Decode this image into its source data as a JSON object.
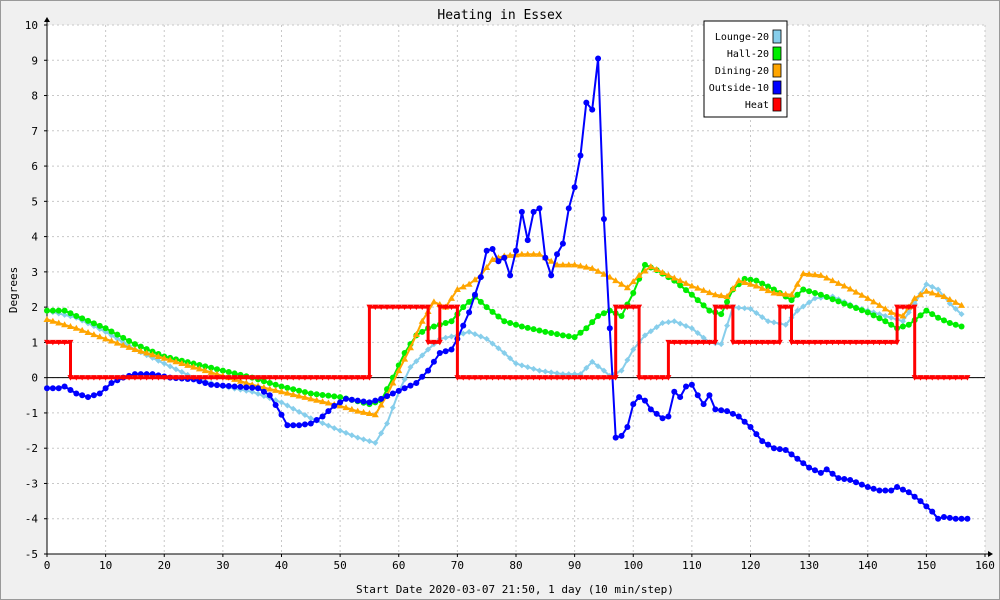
{
  "chart_data": {
    "type": "line",
    "title": "Heating in Essex",
    "xlabel": "Start Date 2020-03-07 21:50, 1 day (10 min/step)",
    "ylabel": "Degrees",
    "xlim": [
      0,
      160
    ],
    "ylim": [
      -5,
      10
    ],
    "xticks": [
      0,
      10,
      20,
      30,
      40,
      50,
      60,
      70,
      80,
      90,
      100,
      110,
      120,
      130,
      140,
      150,
      160
    ],
    "yticks": [
      -5,
      -4,
      -3,
      -2,
      -1,
      0,
      1,
      2,
      3,
      4,
      5,
      6,
      7,
      8,
      9,
      10
    ],
    "grid": true,
    "legend_position": "top-right",
    "series": [
      {
        "name": "Lounge-20",
        "color": "#87ceeb",
        "marker": "diamond",
        "points": [
          [
            0,
            1.9
          ],
          [
            5,
            1.7
          ],
          [
            10,
            1.3
          ],
          [
            15,
            0.8
          ],
          [
            20,
            0.4
          ],
          [
            25,
            0.0
          ],
          [
            30,
            -0.25
          ],
          [
            35,
            -0.4
          ],
          [
            40,
            -0.7
          ],
          [
            45,
            -1.15
          ],
          [
            50,
            -1.5
          ],
          [
            53,
            -1.7
          ],
          [
            56,
            -1.85
          ],
          [
            58,
            -1.3
          ],
          [
            60,
            -0.4
          ],
          [
            62,
            0.3
          ],
          [
            65,
            0.8
          ],
          [
            67,
            1.1
          ],
          [
            70,
            1.2
          ],
          [
            72,
            1.3
          ],
          [
            75,
            1.1
          ],
          [
            78,
            0.7
          ],
          [
            80,
            0.4
          ],
          [
            84,
            0.2
          ],
          [
            88,
            0.1
          ],
          [
            91,
            0.1
          ],
          [
            93,
            0.45
          ],
          [
            95,
            0.2
          ],
          [
            96,
            0.05
          ],
          [
            98,
            0.2
          ],
          [
            100,
            0.8
          ],
          [
            102,
            1.2
          ],
          [
            105,
            1.55
          ],
          [
            107,
            1.6
          ],
          [
            110,
            1.4
          ],
          [
            113,
            1.0
          ],
          [
            115,
            0.95
          ],
          [
            117,
            2.0
          ],
          [
            120,
            1.95
          ],
          [
            123,
            1.6
          ],
          [
            126,
            1.5
          ],
          [
            128,
            1.9
          ],
          [
            131,
            2.25
          ],
          [
            134,
            2.3
          ],
          [
            138,
            2.0
          ],
          [
            142,
            1.8
          ],
          [
            146,
            1.6
          ],
          [
            148,
            2.1
          ],
          [
            150,
            2.65
          ],
          [
            152,
            2.5
          ],
          [
            154,
            2.1
          ],
          [
            156,
            1.8
          ]
        ]
      },
      {
        "name": "Hall-20",
        "color": "#00ee00",
        "marker": "circle",
        "points": [
          [
            0,
            1.9
          ],
          [
            3,
            1.9
          ],
          [
            5,
            1.75
          ],
          [
            10,
            1.4
          ],
          [
            15,
            0.95
          ],
          [
            20,
            0.6
          ],
          [
            25,
            0.4
          ],
          [
            30,
            0.2
          ],
          [
            35,
            0.0
          ],
          [
            40,
            -0.25
          ],
          [
            45,
            -0.45
          ],
          [
            50,
            -0.55
          ],
          [
            55,
            -0.75
          ],
          [
            57,
            -0.65
          ],
          [
            59,
            0.0
          ],
          [
            61,
            0.7
          ],
          [
            63,
            1.2
          ],
          [
            65,
            1.4
          ],
          [
            67,
            1.5
          ],
          [
            69,
            1.6
          ],
          [
            71,
            2.0
          ],
          [
            73,
            2.3
          ],
          [
            75,
            2.0
          ],
          [
            78,
            1.6
          ],
          [
            81,
            1.45
          ],
          [
            85,
            1.3
          ],
          [
            88,
            1.2
          ],
          [
            90,
            1.15
          ],
          [
            92,
            1.4
          ],
          [
            94,
            1.75
          ],
          [
            96,
            1.9
          ],
          [
            98,
            1.75
          ],
          [
            100,
            2.4
          ],
          [
            102,
            3.2
          ],
          [
            104,
            3.05
          ],
          [
            107,
            2.75
          ],
          [
            110,
            2.35
          ],
          [
            113,
            1.9
          ],
          [
            115,
            1.8
          ],
          [
            117,
            2.5
          ],
          [
            119,
            2.8
          ],
          [
            121,
            2.75
          ],
          [
            124,
            2.5
          ],
          [
            127,
            2.2
          ],
          [
            129,
            2.5
          ],
          [
            132,
            2.35
          ],
          [
            136,
            2.1
          ],
          [
            140,
            1.85
          ],
          [
            143,
            1.6
          ],
          [
            145,
            1.4
          ],
          [
            147,
            1.5
          ],
          [
            150,
            1.9
          ],
          [
            152,
            1.7
          ],
          [
            154,
            1.55
          ],
          [
            156,
            1.45
          ]
        ]
      },
      {
        "name": "Dining-20",
        "color": "#ffa500",
        "marker": "triangle",
        "points": [
          [
            0,
            1.65
          ],
          [
            5,
            1.4
          ],
          [
            10,
            1.1
          ],
          [
            15,
            0.8
          ],
          [
            20,
            0.55
          ],
          [
            25,
            0.3
          ],
          [
            30,
            0.05
          ],
          [
            35,
            -0.2
          ],
          [
            40,
            -0.4
          ],
          [
            45,
            -0.6
          ],
          [
            50,
            -0.8
          ],
          [
            53,
            -0.95
          ],
          [
            56,
            -1.05
          ],
          [
            58,
            -0.5
          ],
          [
            60,
            0.2
          ],
          [
            62,
            0.85
          ],
          [
            64,
            1.6
          ],
          [
            66,
            2.15
          ],
          [
            68,
            2.0
          ],
          [
            70,
            2.5
          ],
          [
            72,
            2.65
          ],
          [
            74,
            2.9
          ],
          [
            76,
            3.35
          ],
          [
            78,
            3.45
          ],
          [
            81,
            3.5
          ],
          [
            84,
            3.5
          ],
          [
            87,
            3.2
          ],
          [
            90,
            3.2
          ],
          [
            93,
            3.1
          ],
          [
            96,
            2.85
          ],
          [
            99,
            2.55
          ],
          [
            101,
            2.9
          ],
          [
            103,
            3.15
          ],
          [
            106,
            2.9
          ],
          [
            110,
            2.6
          ],
          [
            114,
            2.35
          ],
          [
            116,
            2.3
          ],
          [
            118,
            2.75
          ],
          [
            121,
            2.6
          ],
          [
            124,
            2.4
          ],
          [
            127,
            2.35
          ],
          [
            129,
            2.95
          ],
          [
            132,
            2.9
          ],
          [
            136,
            2.6
          ],
          [
            140,
            2.25
          ],
          [
            144,
            1.85
          ],
          [
            146,
            1.75
          ],
          [
            148,
            2.25
          ],
          [
            150,
            2.45
          ],
          [
            153,
            2.3
          ],
          [
            156,
            2.05
          ]
        ]
      },
      {
        "name": "Outside-10",
        "color": "#0000ff",
        "marker": "circle",
        "points": [
          [
            0,
            -0.3
          ],
          [
            2,
            -0.3
          ],
          [
            3,
            -0.25
          ],
          [
            5,
            -0.45
          ],
          [
            7,
            -0.55
          ],
          [
            9,
            -0.45
          ],
          [
            11,
            -0.15
          ],
          [
            13,
            0.0
          ],
          [
            15,
            0.1
          ],
          [
            18,
            0.1
          ],
          [
            21,
            0.0
          ],
          [
            25,
            -0.05
          ],
          [
            28,
            -0.2
          ],
          [
            32,
            -0.25
          ],
          [
            36,
            -0.3
          ],
          [
            38,
            -0.5
          ],
          [
            40,
            -1.05
          ],
          [
            41,
            -1.35
          ],
          [
            43,
            -1.35
          ],
          [
            45,
            -1.3
          ],
          [
            47,
            -1.1
          ],
          [
            49,
            -0.8
          ],
          [
            51,
            -0.6
          ],
          [
            53,
            -0.65
          ],
          [
            55,
            -0.7
          ],
          [
            57,
            -0.6
          ],
          [
            59,
            -0.45
          ],
          [
            61,
            -0.3
          ],
          [
            63,
            -0.15
          ],
          [
            65,
            0.2
          ],
          [
            67,
            0.7
          ],
          [
            69,
            0.8
          ],
          [
            70,
            1.1
          ],
          [
            72,
            1.85
          ],
          [
            74,
            2.85
          ],
          [
            75,
            3.6
          ],
          [
            76,
            3.65
          ],
          [
            77,
            3.3
          ],
          [
            78,
            3.4
          ],
          [
            79,
            2.9
          ],
          [
            80,
            3.6
          ],
          [
            81,
            4.7
          ],
          [
            82,
            3.9
          ],
          [
            83,
            4.7
          ],
          [
            84,
            4.8
          ],
          [
            85,
            3.4
          ],
          [
            86,
            2.9
          ],
          [
            87,
            3.5
          ],
          [
            88,
            3.8
          ],
          [
            89,
            4.8
          ],
          [
            90,
            5.4
          ],
          [
            91,
            6.3
          ],
          [
            92,
            7.8
          ],
          [
            93,
            7.6
          ],
          [
            94,
            9.05
          ],
          [
            95,
            4.5
          ],
          [
            96,
            1.4
          ],
          [
            97,
            -1.7
          ],
          [
            98,
            -1.65
          ],
          [
            99,
            -1.4
          ],
          [
            100,
            -0.75
          ],
          [
            101,
            -0.55
          ],
          [
            102,
            -0.65
          ],
          [
            103,
            -0.9
          ],
          [
            105,
            -1.15
          ],
          [
            106,
            -1.1
          ],
          [
            107,
            -0.4
          ],
          [
            108,
            -0.55
          ],
          [
            109,
            -0.25
          ],
          [
            110,
            -0.2
          ],
          [
            111,
            -0.5
          ],
          [
            112,
            -0.75
          ],
          [
            113,
            -0.5
          ],
          [
            114,
            -0.9
          ],
          [
            116,
            -0.95
          ],
          [
            118,
            -1.1
          ],
          [
            120,
            -1.4
          ],
          [
            122,
            -1.8
          ],
          [
            124,
            -2.0
          ],
          [
            126,
            -2.05
          ],
          [
            128,
            -2.3
          ],
          [
            130,
            -2.55
          ],
          [
            132,
            -2.7
          ],
          [
            133,
            -2.6
          ],
          [
            135,
            -2.85
          ],
          [
            137,
            -2.9
          ],
          [
            140,
            -3.1
          ],
          [
            142,
            -3.2
          ],
          [
            144,
            -3.2
          ],
          [
            145,
            -3.1
          ],
          [
            147,
            -3.25
          ],
          [
            149,
            -3.5
          ],
          [
            151,
            -3.8
          ],
          [
            152,
            -4.0
          ],
          [
            153,
            -3.95
          ],
          [
            155,
            -4.0
          ],
          [
            157,
            -4.0
          ]
        ]
      },
      {
        "name": "Heat",
        "color": "#ff0000",
        "marker": "triangle-down",
        "step": true,
        "points": [
          [
            0,
            1
          ],
          [
            4,
            1
          ],
          [
            4,
            0
          ],
          [
            55,
            0
          ],
          [
            55,
            2
          ],
          [
            65,
            2
          ],
          [
            65,
            1
          ],
          [
            67,
            1
          ],
          [
            67,
            2
          ],
          [
            70,
            2
          ],
          [
            70,
            0
          ],
          [
            97,
            0
          ],
          [
            97,
            2
          ],
          [
            101,
            2
          ],
          [
            101,
            0
          ],
          [
            106,
            0
          ],
          [
            106,
            1
          ],
          [
            114,
            1
          ],
          [
            114,
            2
          ],
          [
            117,
            2
          ],
          [
            117,
            1
          ],
          [
            125,
            1
          ],
          [
            125,
            2
          ],
          [
            127,
            2
          ],
          [
            127,
            1
          ],
          [
            145,
            1
          ],
          [
            145,
            2
          ],
          [
            148,
            2
          ],
          [
            148,
            0
          ],
          [
            157,
            0
          ]
        ]
      }
    ]
  }
}
